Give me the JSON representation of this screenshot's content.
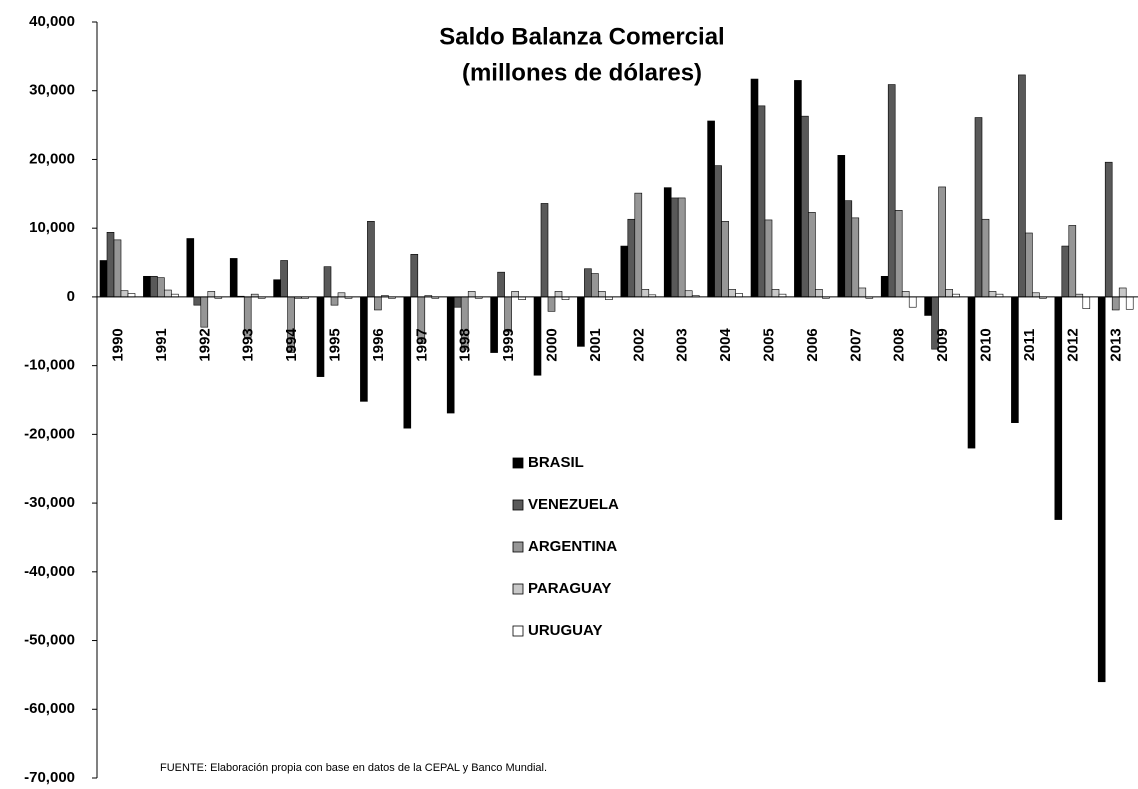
{
  "chart_data": {
    "type": "bar",
    "title": "Saldo Balanza Comercial",
    "subtitle": "(millones de dólares)",
    "note": "FUENTE: Elaboración propia con base en datos de la CEPAL y Banco Mundial.",
    "categories": [
      "1990",
      "1991",
      "1992",
      "1993",
      "1994",
      "1995",
      "1996",
      "1997",
      "1998",
      "1999",
      "2000",
      "2001",
      "2002",
      "2003",
      "2004",
      "2005",
      "2006",
      "2007",
      "2008",
      "2009",
      "2010",
      "2011",
      "2012",
      "2013"
    ],
    "series": [
      {
        "name": "BRASIL",
        "color": "#000000",
        "values": [
          5300,
          3000,
          8500,
          5600,
          2500,
          -11600,
          -15200,
          -19100,
          -16900,
          -8100,
          -11400,
          -7200,
          7400,
          15900,
          25600,
          31700,
          31500,
          20600,
          3000,
          -2700,
          -22000,
          -18300,
          -32400,
          -56000
        ]
      },
      {
        "name": "VENEZUELA",
        "color": "#595959",
        "values": [
          9400,
          3000,
          -1200,
          100,
          5300,
          4400,
          11000,
          6200,
          -1500,
          3600,
          13600,
          4100,
          11300,
          14400,
          19100,
          27800,
          26300,
          14000,
          30900,
          -7600,
          26100,
          32300,
          7400,
          19600
        ]
      },
      {
        "name": "ARGENTINA",
        "color": "#969696",
        "values": [
          8300,
          2800,
          -4400,
          -5900,
          -8100,
          -1200,
          -1900,
          -6800,
          -7600,
          -5100,
          -2100,
          3400,
          15100,
          14400,
          11000,
          11200,
          12300,
          11500,
          12600,
          16000,
          11300,
          9300,
          10400,
          -1900
        ]
      },
      {
        "name": "PARAGUAY",
        "color": "#c8c8c8",
        "values": [
          900,
          1000,
          800,
          400,
          -200,
          600,
          200,
          200,
          800,
          800,
          800,
          800,
          1100,
          900,
          1100,
          1100,
          1100,
          1300,
          800,
          1100,
          800,
          600,
          400,
          1300
        ]
      },
      {
        "name": "URUGUAY",
        "color": "#ffffff",
        "values": [
          500,
          400,
          -200,
          -200,
          -200,
          -200,
          -200,
          -200,
          -200,
          -400,
          -400,
          -400,
          300,
          200,
          500,
          400,
          -200,
          -200,
          -1500,
          400,
          400,
          -200,
          -1700,
          -1800
        ]
      }
    ],
    "ylim": [
      -70000,
      40000
    ],
    "yticks": [
      {
        "value": -70000,
        "label": "-70,000"
      },
      {
        "value": -60000,
        "label": "-60,000"
      },
      {
        "value": -50000,
        "label": "-50,000"
      },
      {
        "value": -40000,
        "label": "-40,000"
      },
      {
        "value": -30000,
        "label": "-30,000"
      },
      {
        "value": -20000,
        "label": "-20,000"
      },
      {
        "value": -10000,
        "label": "-10,000"
      },
      0,
      {
        "value": 10000,
        "label": "10,000"
      },
      {
        "value": 20000,
        "label": "20,000"
      },
      {
        "value": 30000,
        "label": "30,000"
      },
      {
        "value": 40000,
        "label": "40,000"
      }
    ],
    "grid": false
  }
}
